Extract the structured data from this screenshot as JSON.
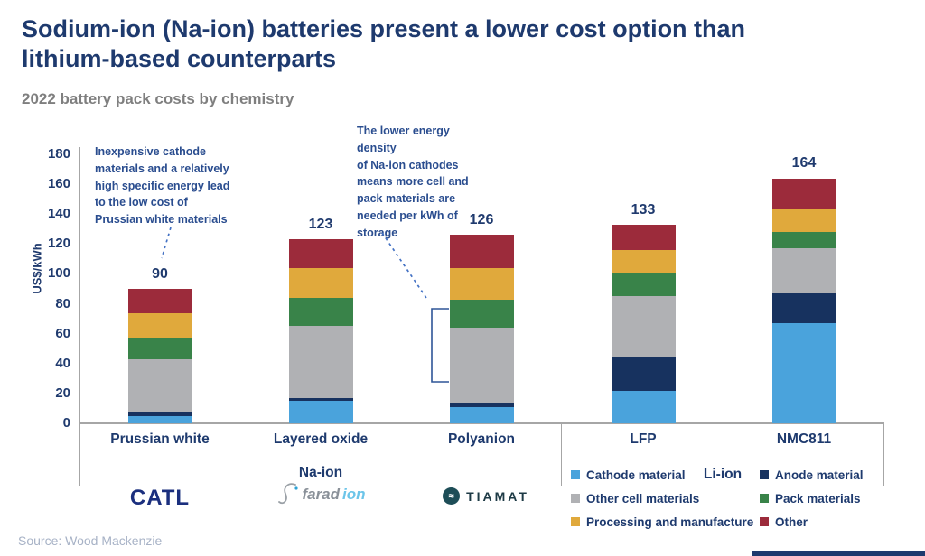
{
  "title": "Sodium-ion (Na-ion) batteries present a lower cost option than\nlithium-based counterparts",
  "subtitle": "2022 battery pack costs by chemistry",
  "source": "Source: Wood Mackenzie",
  "annotations": {
    "prussian_white": "Inexpensive cathode\nmaterials and a relatively\nhigh specific energy lead\nto the low cost of\nPrussian white materials",
    "na_ion_density": "The lower energy density\nof Na-ion cathodes\nmeans more cell and\npack materials are\nneeded per kWh of\nstorage"
  },
  "colors": {
    "title_navy": "#1e3a6e",
    "axis_gray": "#a6a6a6",
    "annotation_blue": "#2a4d8f",
    "connector_blue": "#4472c4"
  },
  "chart_data": {
    "type": "bar",
    "stacked": true,
    "title": "2022 battery pack costs by chemistry",
    "xlabel": "",
    "ylabel": "US$/kWh",
    "ylim": [
      0,
      180
    ],
    "ytick_step": 20,
    "grid": false,
    "legend_position": "bottom-right",
    "categories": [
      "Prussian white",
      "Layered oxide",
      "Polyanion",
      "LFP",
      "NMC811"
    ],
    "category_groups": [
      {
        "label": "Na-ion",
        "categories": [
          "Prussian white",
          "Layered oxide",
          "Polyanion"
        ]
      },
      {
        "label": "Li-ion",
        "categories": [
          "LFP",
          "NMC811"
        ]
      }
    ],
    "totals": [
      90,
      123,
      126,
      133,
      164
    ],
    "series": [
      {
        "name": "Cathode material",
        "color": "#4aa3dc",
        "values": [
          5,
          15,
          11,
          22,
          67
        ]
      },
      {
        "name": "Anode material",
        "color": "#17325f",
        "values": [
          2,
          2,
          2,
          22,
          20
        ]
      },
      {
        "name": "Other cell materials",
        "color": "#b0b1b4",
        "values": [
          36,
          48,
          51,
          41,
          30
        ]
      },
      {
        "name": "Pack materials",
        "color": "#398349",
        "values": [
          14,
          19,
          19,
          15,
          11
        ]
      },
      {
        "name": "Processing and manufacture",
        "color": "#e0a93c",
        "values": [
          17,
          20,
          21,
          16,
          16
        ]
      },
      {
        "name": "Other",
        "color": "#9c2b3b",
        "values": [
          16,
          19,
          22,
          17,
          20
        ]
      }
    ]
  },
  "logos": {
    "catl": "CATL",
    "faradion_prefix": "farad",
    "faradion_suffix": "ion",
    "tiamat": "TIAMAT",
    "tiamat_glyph": "≈"
  }
}
